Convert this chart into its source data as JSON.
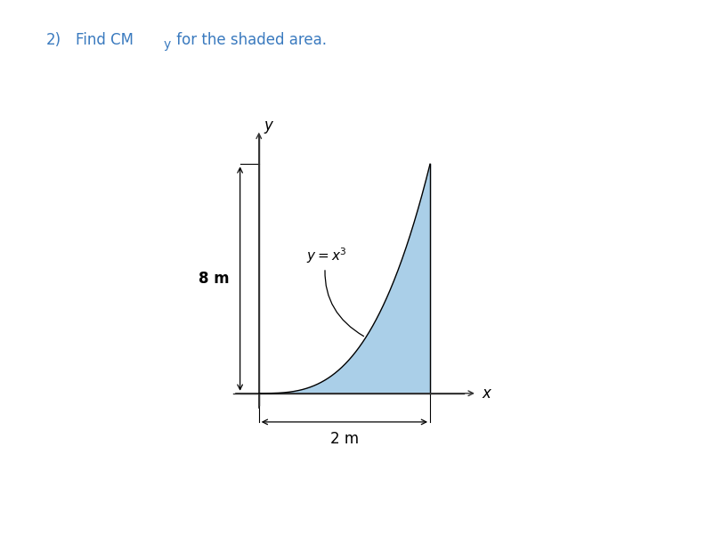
{
  "x_max": 2.0,
  "y_max": 8.0,
  "shade_color": "#aacfe8",
  "axis_color": "#333333",
  "label_8m": "8 m",
  "label_2m": "2 m",
  "fig_width": 7.93,
  "fig_height": 6.02,
  "title_number": "2)",
  "title_main": "Find CM",
  "title_sub": "y",
  "title_rest": " for the shaded area.",
  "title_color": "#3a7abf",
  "title_fontsize": 12
}
